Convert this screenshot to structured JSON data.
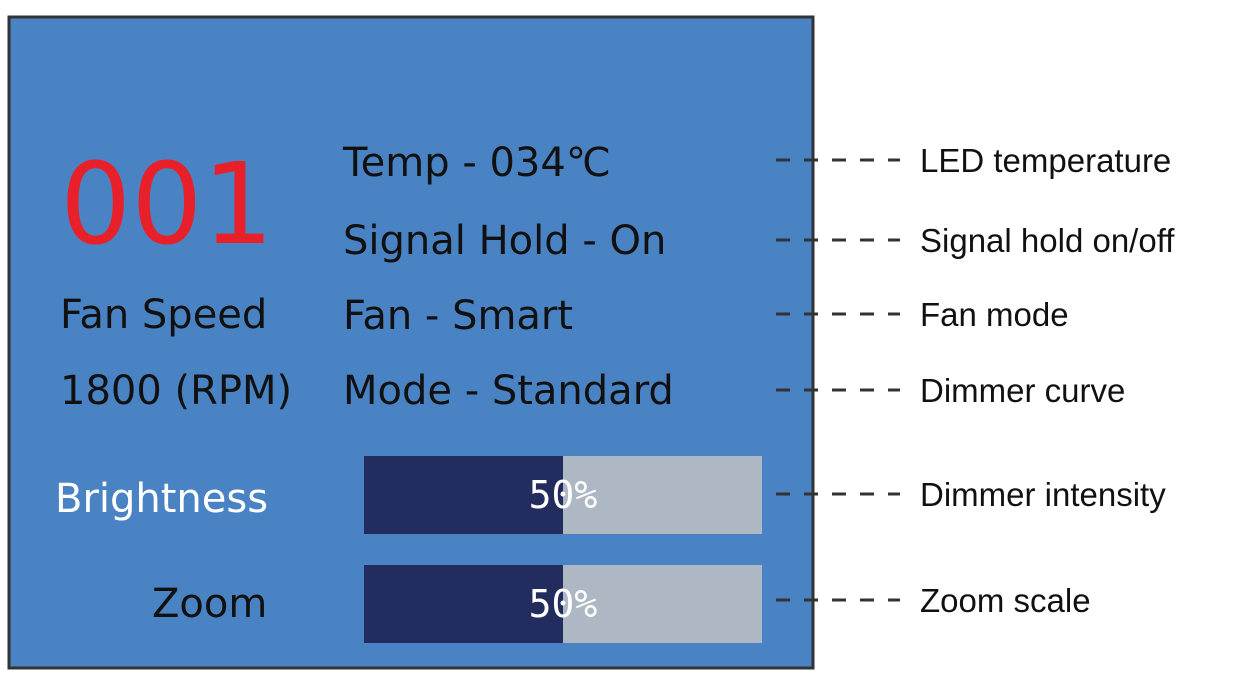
{
  "screen": {
    "address": "001",
    "fan_label": "Fan Speed",
    "fan_rpm": "1800 (RPM)",
    "status": [
      "Temp - 034℃",
      "Signal Hold - On",
      "Fan - Smart",
      "Mode - Standard"
    ],
    "sliders": [
      {
        "label": "Brightness",
        "value": 50,
        "value_label": "50%"
      },
      {
        "label": "Zoom",
        "value": 50,
        "value_label": "50%"
      }
    ]
  },
  "annotations": [
    "LED temperature",
    "Signal hold on/off",
    "Fan mode",
    "Dimmer curve",
    "Dimmer intensity",
    "Zoom scale"
  ]
}
